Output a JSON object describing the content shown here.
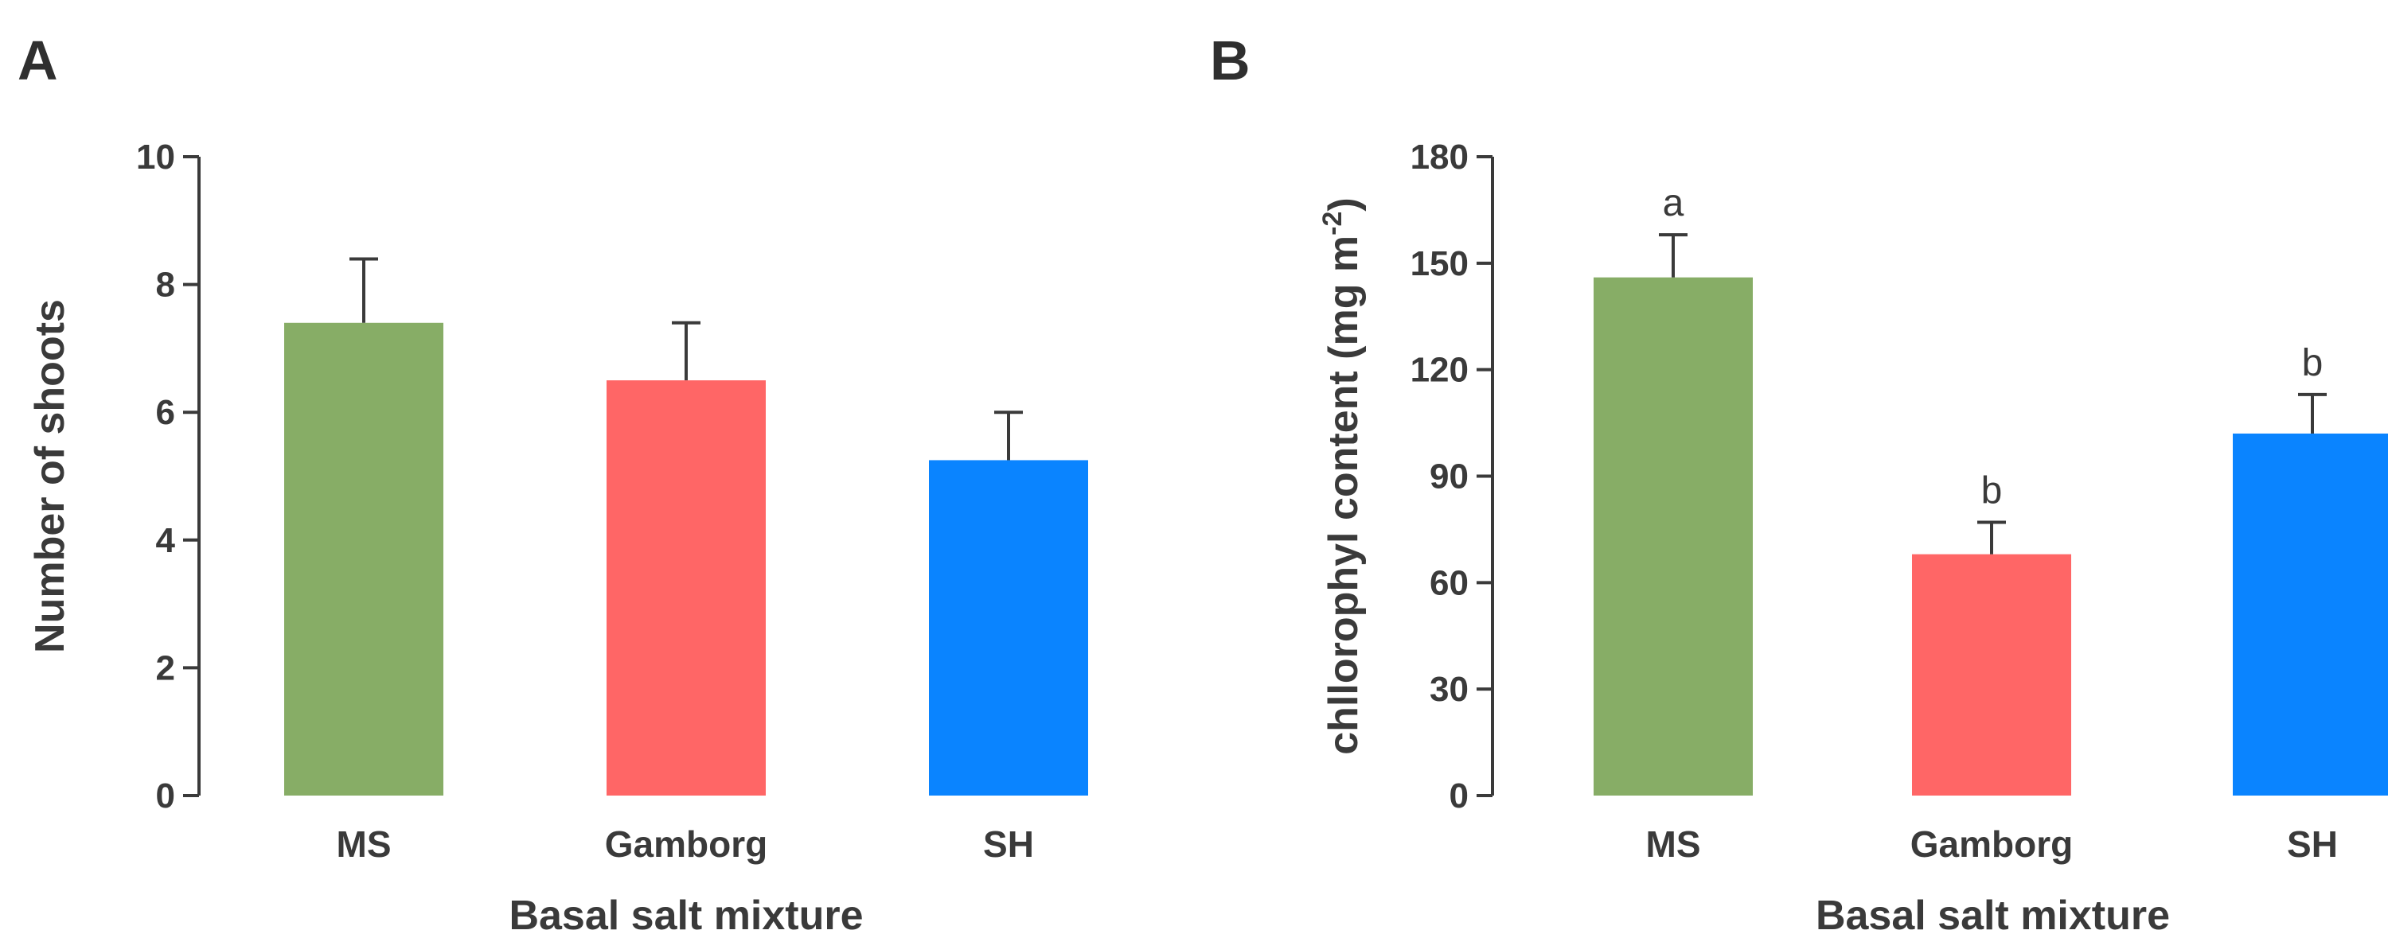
{
  "chart_data": [
    {
      "panel": "A",
      "type": "bar",
      "categories": [
        "MS",
        "Gamborg",
        "SH"
      ],
      "values": [
        7.4,
        6.5,
        5.25
      ],
      "errors": [
        1.0,
        0.9,
        0.75
      ],
      "colors": [
        "#87AD66",
        "#FF6666",
        "#0A84FF"
      ],
      "annotations": [],
      "title": "",
      "xlabel": "Basal salt mixture",
      "ylabel": "Number of shoots",
      "ylabel_superscript": "",
      "ylabel_suffix": "",
      "ylim": [
        0,
        10
      ],
      "yticks": [
        0,
        2,
        4,
        6,
        8,
        10
      ],
      "grid": false
    },
    {
      "panel": "B",
      "type": "bar",
      "categories": [
        "MS",
        "Gamborg",
        "SH"
      ],
      "values": [
        146,
        68,
        102
      ],
      "errors": [
        12,
        9,
        11
      ],
      "colors": [
        "#87AD66",
        "#FF6666",
        "#0A84FF"
      ],
      "annotations": [
        "a",
        "b",
        "b"
      ],
      "title": "",
      "xlabel": "Basal salt mixture",
      "ylabel": "chllorophyl content (mg m",
      "ylabel_superscript": "-2",
      "ylabel_suffix": ")",
      "ylim": [
        0,
        180
      ],
      "yticks": [
        0,
        30,
        60,
        90,
        120,
        150,
        180
      ],
      "grid": false
    }
  ]
}
